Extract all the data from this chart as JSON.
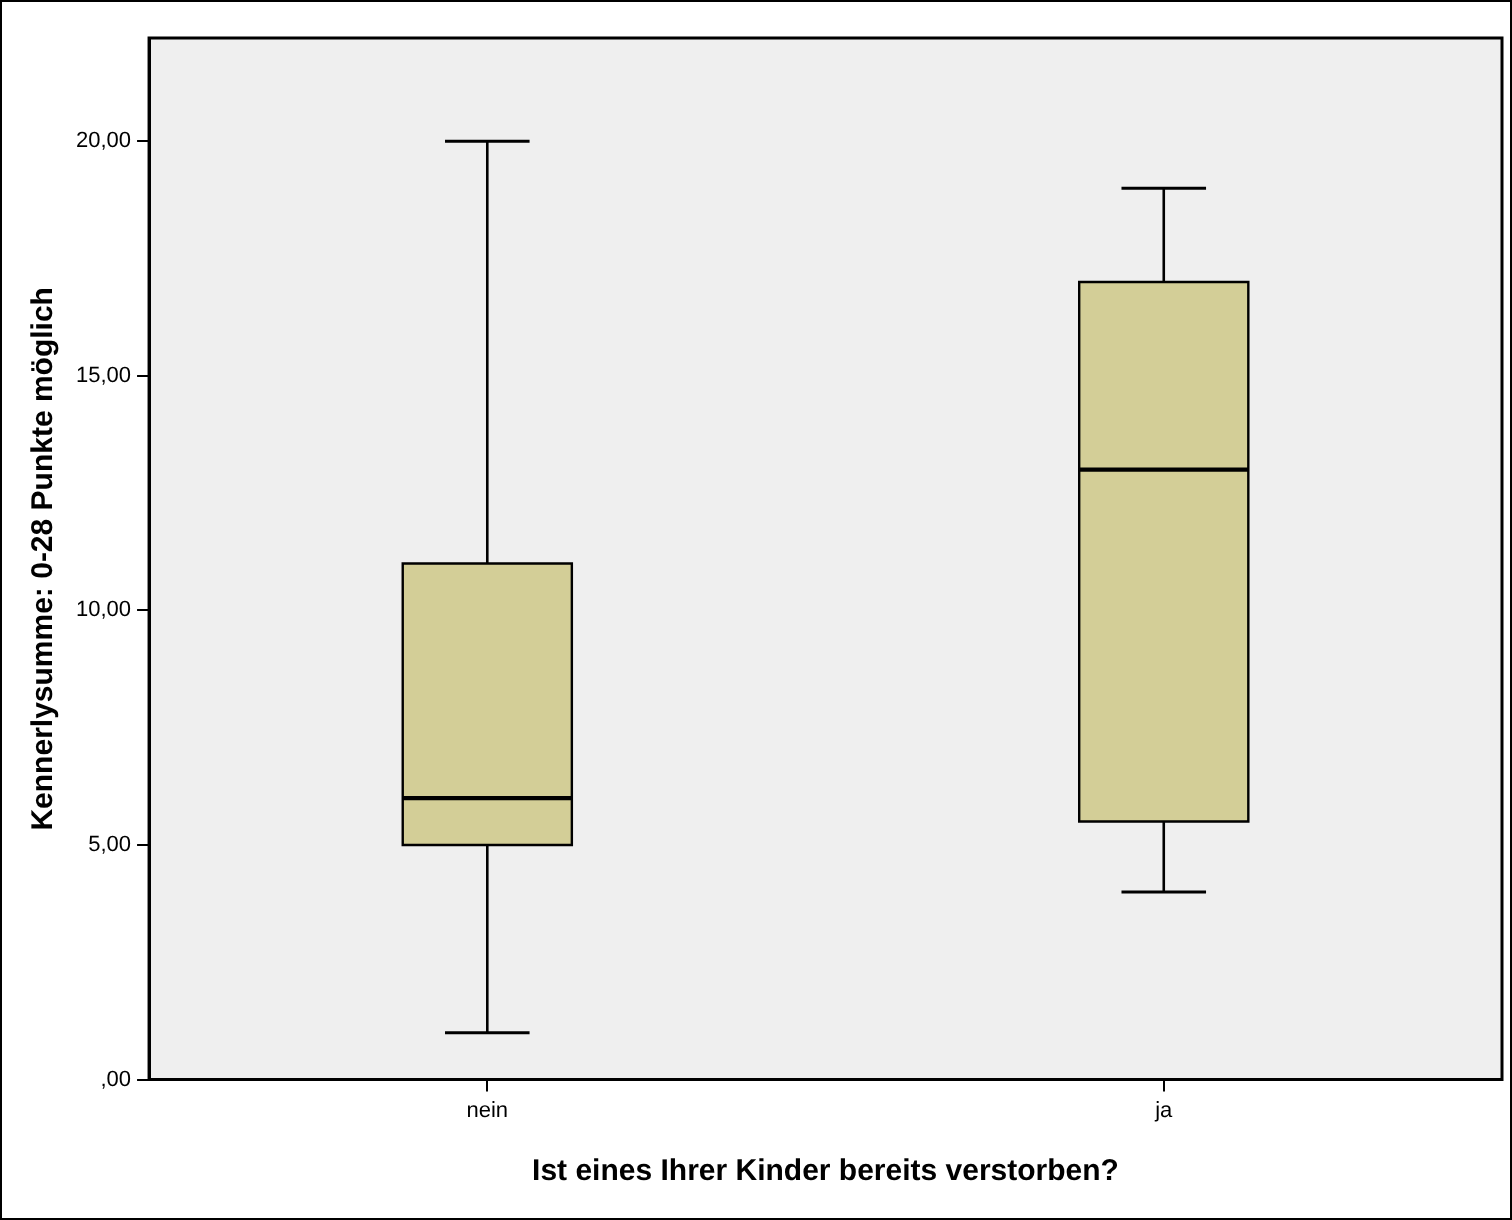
{
  "chart_data": {
    "type": "box",
    "xlabel": "Ist eines Ihrer Kinder bereits verstorben?",
    "ylabel": "Kennerlysumme: 0-28 Punkte möglich",
    "categories": [
      "nein",
      "ja"
    ],
    "color": "#d3ce97",
    "boxes": [
      {
        "low": 1,
        "q1": 5,
        "median": 6,
        "q3": 11,
        "high": 20
      },
      {
        "low": 4,
        "q1": 5.5,
        "median": 13,
        "q3": 17,
        "high": 19
      }
    ],
    "ylim": [
      0,
      22.2
    ],
    "yticks": [
      {
        "value": 0,
        "label": ",00"
      },
      {
        "value": 5,
        "label": "5,00"
      },
      {
        "value": 10,
        "label": "10,00"
      },
      {
        "value": 15,
        "label": "15,00"
      },
      {
        "value": 20,
        "label": "20,00"
      }
    ],
    "grid": false,
    "legend": false
  }
}
